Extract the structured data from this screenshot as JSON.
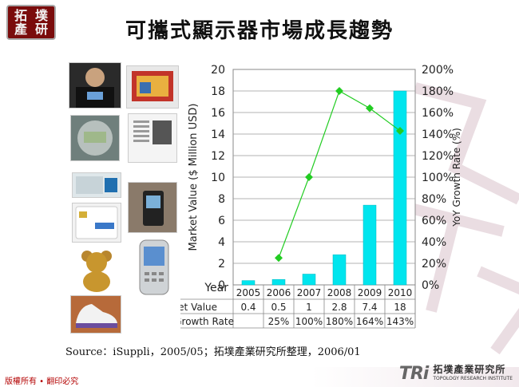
{
  "logo": {
    "chars": [
      "拓",
      "墣",
      "產",
      "研"
    ]
  },
  "title": "可攜式顯示器市場成長趨勢",
  "source_note": "Source：iSuppli，2005/05；拓墣產業研究所整理，2006/01",
  "footer": {
    "copyright": "版權所有 • 翻印必究",
    "brand": "TRi",
    "brand_cn": "拓墣產業研究所",
    "brand_en": "TOPOLOGY RESEARCH INSTITUTE"
  },
  "colors": {
    "bar": "#00e5ee",
    "line": "#22cc22",
    "logo": "#7a0c0c"
  },
  "chart_data": {
    "type": "bar",
    "categories": [
      "2005",
      "2006",
      "2007",
      "2008",
      "2009",
      "2010"
    ],
    "category_axis_label": "Year",
    "ylabel": "Market Value ($ Million USD)",
    "y2label": "YoY Growth Rate (%)",
    "ylim": [
      0,
      20
    ],
    "yticks": [
      "0",
      "2",
      "4",
      "6",
      "8",
      "10",
      "12",
      "14",
      "16",
      "18",
      "20"
    ],
    "y2lim": [
      0,
      200
    ],
    "y2ticks": [
      "0%",
      "20%",
      "40%",
      "60%",
      "80%",
      "100%",
      "120%",
      "140%",
      "160%",
      "180%",
      "200%"
    ],
    "grid": true,
    "series": [
      {
        "name": "Market Value",
        "type": "bar",
        "axis": "left",
        "values": [
          0.4,
          0.5,
          1,
          2.8,
          7.4,
          18
        ],
        "labels": [
          "0.4",
          "0.5",
          "1",
          "2.8",
          "7.4",
          "18"
        ]
      },
      {
        "name": "YoY Growth Rate",
        "type": "line",
        "axis": "right",
        "values": [
          null,
          25,
          100,
          180,
          164,
          143
        ],
        "labels": [
          "",
          "25%",
          "100%",
          "180%",
          "164%",
          "143%"
        ]
      }
    ]
  }
}
